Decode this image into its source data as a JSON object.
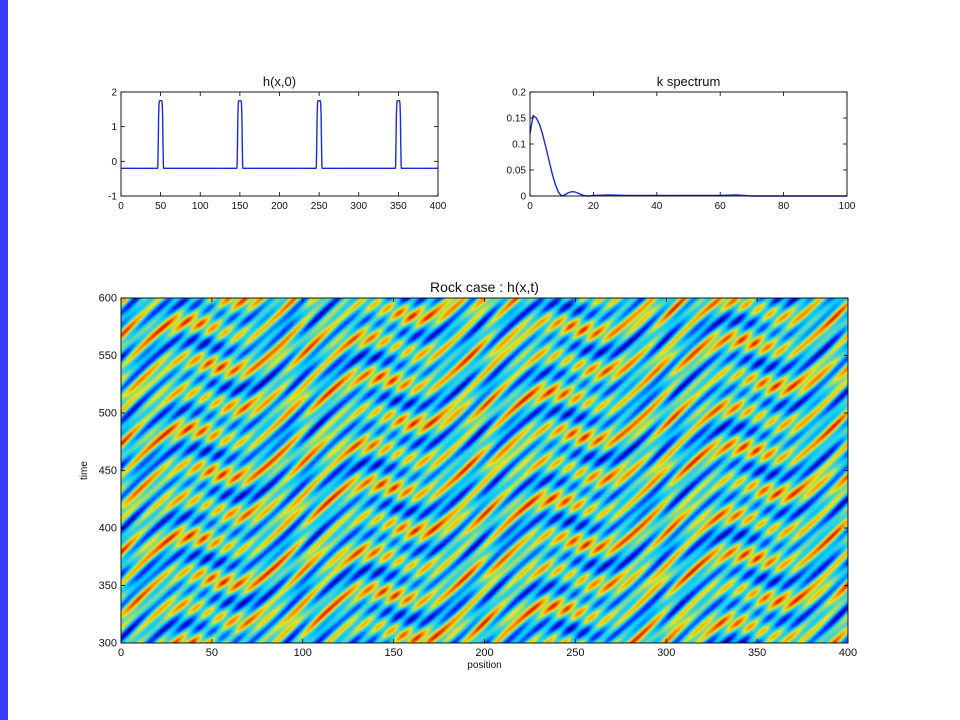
{
  "colors": {
    "slide_bar": "#3b3bf5",
    "line": "#1a2bd6",
    "colormap": [
      "#00008f",
      "#0030ff",
      "#00c8ff",
      "#3ed2d8",
      "#e6e61e",
      "#ff8c00",
      "#c80000"
    ]
  },
  "chart_data": [
    {
      "id": "initial-profile",
      "type": "line",
      "title": "h(x,0)",
      "xlabel": "",
      "ylabel": "",
      "xlim": [
        0,
        400
      ],
      "ylim": [
        -1,
        2
      ],
      "xticks": [
        0,
        50,
        100,
        150,
        200,
        250,
        300,
        350,
        400
      ],
      "yticks": [
        -1,
        0,
        1,
        2
      ],
      "series": [
        {
          "baseline": -0.2,
          "peak": 1.75,
          "pulse_centers": [
            50,
            150,
            250,
            350
          ],
          "pulse_half_width": 3
        }
      ]
    },
    {
      "id": "k-spectrum",
      "type": "line",
      "title": "k spectrum",
      "xlabel": "",
      "ylabel": "",
      "xlim": [
        0,
        100
      ],
      "ylim": [
        0,
        0.2
      ],
      "xticks": [
        0,
        20,
        40,
        60,
        80,
        100
      ],
      "yticks": [
        0,
        0.05,
        0.1,
        0.15,
        0.2
      ],
      "series": [
        {
          "x": [
            0,
            1,
            2,
            3,
            4,
            5,
            6,
            7,
            8,
            9,
            10,
            11,
            12,
            13,
            14,
            15,
            16,
            17,
            18,
            19,
            20,
            25,
            30,
            40,
            50,
            60,
            65,
            70,
            80,
            90,
            100
          ],
          "y": [
            0.12,
            0.155,
            0.15,
            0.138,
            0.118,
            0.094,
            0.068,
            0.043,
            0.022,
            0.007,
            0.0,
            0.002,
            0.006,
            0.008,
            0.008,
            0.006,
            0.003,
            0.001,
            0.0,
            0.0,
            0.001,
            0.002,
            0.001,
            0.001,
            0.001,
            0.001,
            0.002,
            0.0,
            0.0,
            0.0,
            0.0
          ]
        }
      ]
    },
    {
      "id": "rock-case",
      "type": "heatmap",
      "title": "Rock case : h(x,t)",
      "xlabel": "position",
      "ylabel": "time",
      "xlim": [
        0,
        400
      ],
      "ylim": [
        300,
        600
      ],
      "xticks": [
        0,
        50,
        100,
        150,
        200,
        250,
        300,
        350,
        400
      ],
      "yticks": [
        300,
        350,
        400,
        450,
        500,
        550,
        600
      ],
      "colormap": "jet",
      "pattern": "diagonal travelling wave bands rising to the right, period 100 in position"
    }
  ]
}
